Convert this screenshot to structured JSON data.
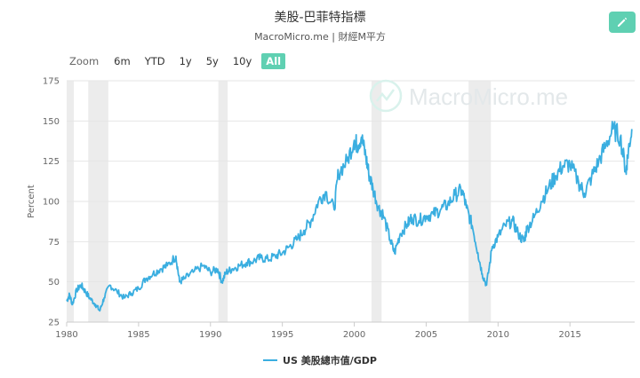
{
  "header": {
    "title": "美股-巴菲特指標",
    "subtitle": "MacroMicro.me | 財經M平方"
  },
  "watermark": {
    "text": "MacroMicro.me"
  },
  "toolbar": {
    "zoom_label": "Zoom",
    "ranges": [
      "6m",
      "YTD",
      "1y",
      "5y",
      "10y",
      "All"
    ],
    "active_range": "All"
  },
  "icons": {
    "edit": "pencil-icon",
    "watermark": "chart-logo-icon"
  },
  "colors": {
    "series": "#3aaee0",
    "accent": "#5fd0b2",
    "recession": "#ececec"
  },
  "chart_data": {
    "type": "line",
    "title": "",
    "xlabel": "",
    "ylabel": "Percent",
    "xlim": [
      1980,
      2019.5
    ],
    "ylim": [
      25,
      175
    ],
    "yticks": [
      25,
      50,
      75,
      100,
      125,
      150,
      175
    ],
    "xticks": [
      1980,
      1985,
      1990,
      1995,
      2000,
      2005,
      2010,
      2015
    ],
    "grid": true,
    "legend": "bottom-center",
    "recessions": [
      [
        1980.0,
        1980.5
      ],
      [
        1981.5,
        1982.9
      ],
      [
        1990.55,
        1991.2
      ],
      [
        2001.2,
        2001.9
      ],
      [
        2007.95,
        2009.5
      ]
    ],
    "series": [
      {
        "name": "US 美股總市值/GDP",
        "x": [
          1980.0,
          1980.2,
          1980.4,
          1980.7,
          1981.0,
          1981.3,
          1981.6,
          1982.0,
          1982.3,
          1982.6,
          1983.0,
          1983.5,
          1984.0,
          1984.5,
          1985.0,
          1985.5,
          1986.0,
          1986.5,
          1987.0,
          1987.6,
          1987.85,
          1988.2,
          1988.8,
          1989.5,
          1990.0,
          1990.5,
          1990.8,
          1991.1,
          1991.5,
          1992.0,
          1992.5,
          1993.0,
          1993.5,
          1994.0,
          1994.5,
          1995.0,
          1995.5,
          1996.0,
          1996.5,
          1997.0,
          1997.5,
          1998.0,
          1998.6,
          1998.9,
          1999.5,
          2000.0,
          2000.2,
          2000.5,
          2000.8,
          2001.0,
          2001.3,
          2001.7,
          2002.0,
          2002.5,
          2002.8,
          2003.2,
          2003.7,
          2004.0,
          2004.5,
          2005.0,
          2005.5,
          2006.0,
          2006.5,
          2007.0,
          2007.5,
          2007.8,
          2008.2,
          2008.6,
          2008.9,
          2009.2,
          2009.6,
          2010.0,
          2010.5,
          2011.0,
          2011.4,
          2011.8,
          2012.0,
          2012.5,
          2013.0,
          2013.5,
          2014.0,
          2014.5,
          2015.0,
          2015.6,
          2016.0,
          2016.5,
          2017.0,
          2017.5,
          2018.0,
          2018.5,
          2018.9,
          2019.0,
          2019.3
        ],
        "values": [
          38,
          42,
          36,
          45,
          48,
          44,
          40,
          36,
          32,
          40,
          48,
          44,
          40,
          43,
          46,
          52,
          55,
          58,
          60,
          66,
          50,
          52,
          56,
          60,
          56,
          58,
          50,
          56,
          58,
          60,
          62,
          63,
          65,
          64,
          66,
          68,
          72,
          76,
          82,
          88,
          100,
          106,
          95,
          118,
          125,
          138,
          135,
          140,
          128,
          118,
          108,
          96,
          92,
          76,
          68,
          80,
          86,
          90,
          88,
          91,
          92,
          95,
          98,
          104,
          107,
          96,
          85,
          68,
          55,
          48,
          72,
          78,
          85,
          88,
          80,
          75,
          83,
          90,
          100,
          108,
          116,
          122,
          123,
          112,
          105,
          115,
          125,
          135,
          145,
          140,
          118,
          128,
          145
        ]
      }
    ]
  }
}
